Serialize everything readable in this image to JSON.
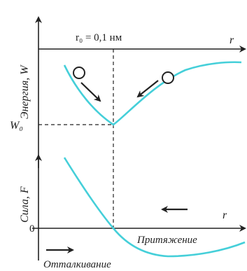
{
  "colors": {
    "curve": "#45cfd9",
    "axis": "#222222",
    "guide": "#222222",
    "background": "#ffffff"
  },
  "top_chart": {
    "y_axis_label": "Энергия, W",
    "x_axis_label": "r",
    "r0_label": "r₀ = 0,1 нм",
    "minimum_label": "W₀"
  },
  "bottom_chart": {
    "y_axis_label": "Сила, F",
    "x_axis_label": "r",
    "zero_label": "0",
    "attraction_label": "Притяжение",
    "repulsion_label": "Отталкивание"
  }
}
